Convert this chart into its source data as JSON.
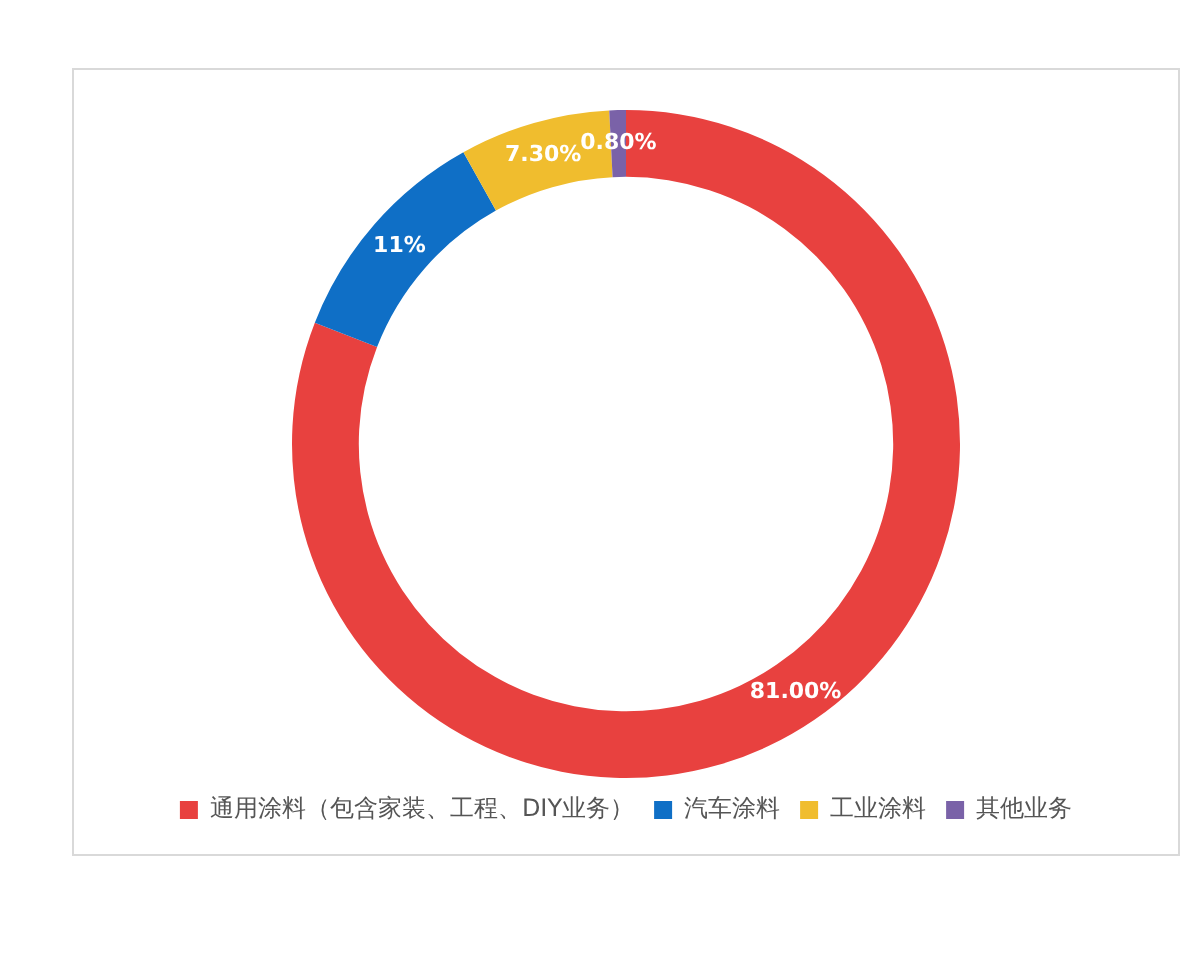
{
  "chart_data": {
    "type": "donut",
    "categories": [
      "通用涂料（包含家装、工程、DIY业务）",
      "汽车涂料",
      "工业涂料",
      "其他业务"
    ],
    "values": [
      81,
      11,
      7.3,
      0.8
    ],
    "colors": [
      "#e8413f",
      "#0f6fc6",
      "#f0bd2e",
      "#7a62a8"
    ],
    "value_labels": [
      "81.00%",
      "11%",
      "7.30%",
      "0.80%"
    ],
    "legend": "bottom"
  }
}
